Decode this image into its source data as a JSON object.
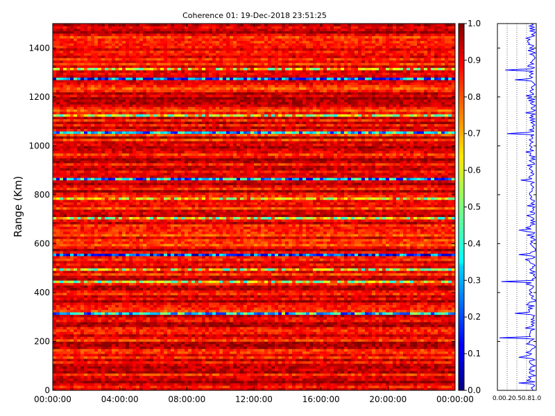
{
  "chart_data": [
    {
      "type": "heatmap",
      "title": "Coherence 01: 19-Dec-2018 23:51:25",
      "ylabel": "Range (Km)",
      "xlabel": "",
      "x_tick_labels": [
        "00:00:00",
        "04:00:00",
        "08:00:00",
        "12:00:00",
        "16:00:00",
        "20:00:00",
        "00:00:00"
      ],
      "x_tick_hours": [
        0,
        4,
        8,
        12,
        16,
        20,
        24
      ],
      "xlim_hours": [
        0,
        24
      ],
      "y_ticks": [
        0,
        200,
        400,
        600,
        800,
        1000,
        1200,
        1400
      ],
      "ylim": [
        0,
        1500
      ],
      "colorbar": {
        "colormap": "jet",
        "ticks": [
          0.0,
          0.1,
          0.2,
          0.3,
          0.4,
          0.5,
          0.6,
          0.7,
          0.8,
          0.9,
          1.0
        ],
        "tick_labels": [
          "0.0",
          "0.1",
          "0.2",
          "0.3",
          "0.4",
          "0.5",
          "0.6",
          "0.7",
          "0.8",
          "0.9",
          "1.0"
        ],
        "range": [
          0,
          1
        ]
      },
      "low_coherence_bands": [
        {
          "range_km": 315,
          "coherence": 0.35
        },
        {
          "range_km": 445,
          "coherence": 0.6
        },
        {
          "range_km": 490,
          "coherence": 0.62
        },
        {
          "range_km": 555,
          "coherence": 0.2
        },
        {
          "range_km": 700,
          "coherence": 0.6
        },
        {
          "range_km": 785,
          "coherence": 0.65
        },
        {
          "range_km": 860,
          "coherence": 0.3
        },
        {
          "range_km": 1050,
          "coherence": 0.35
        },
        {
          "range_km": 1120,
          "coherence": 0.6
        },
        {
          "range_km": 1270,
          "coherence": 0.25
        },
        {
          "range_km": 1310,
          "coherence": 0.65
        }
      ],
      "background_coherence": [
        0.78,
        0.98
      ]
    },
    {
      "type": "line",
      "description_axis": "mean coherence vs range",
      "x_tick_labels": [
        "0.0",
        "0.2",
        "0.5",
        "0.8",
        "1.0"
      ],
      "x_ticks": [
        0.0,
        0.25,
        0.5,
        0.75,
        1.0
      ],
      "xlim": [
        0,
        1
      ],
      "ylim": [
        0,
        1500
      ],
      "grid": "vertical-dotted",
      "color": "#0000ff",
      "dips": [
        {
          "range_km": 30,
          "value": 0.55
        },
        {
          "range_km": 135,
          "value": 0.55
        },
        {
          "range_km": 215,
          "value": 0.05
        },
        {
          "range_km": 315,
          "value": 0.45
        },
        {
          "range_km": 445,
          "value": 0.1
        },
        {
          "range_km": 555,
          "value": 0.55
        },
        {
          "range_km": 655,
          "value": 0.55
        },
        {
          "range_km": 860,
          "value": 0.6
        },
        {
          "range_km": 1050,
          "value": 0.25
        },
        {
          "range_km": 1270,
          "value": 0.45
        },
        {
          "range_km": 1310,
          "value": 0.2
        }
      ]
    }
  ]
}
